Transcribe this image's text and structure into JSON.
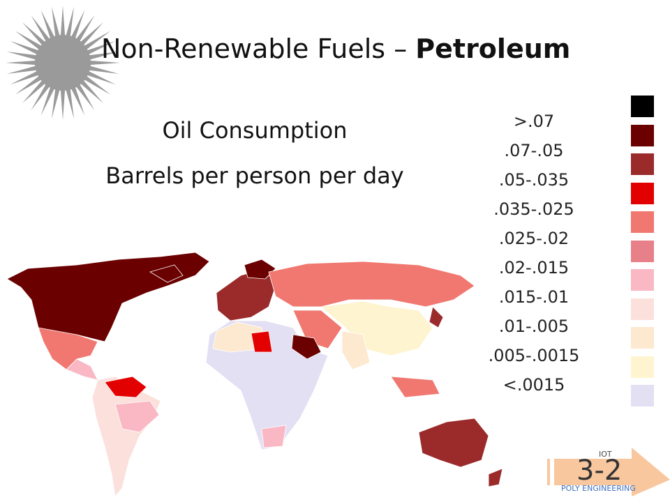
{
  "header": {
    "title": "Non-Renewable Fuels – ",
    "title_bold": "Petroleum"
  },
  "subtitle": [
    "Oil Consumption",
    "Barrels per person per day"
  ],
  "legend": {
    "swatches": [
      "#000000",
      "#6b0000",
      "#9b2a2a",
      "#e30000",
      "#f07870",
      "#e8808a",
      "#f9b8c4",
      "#fbe0dc",
      "#fde8d0",
      "#fff4d0",
      "#e4e0f4"
    ],
    "labels": [
      ">.07",
      ".07-.05",
      ".05-.035",
      ".035-.025",
      ".025-.02",
      ".02-.015",
      ".015-.01",
      ".01-.005",
      ".005-.0015",
      "<.0015"
    ]
  },
  "badge": {
    "top": "IOT",
    "number": "3-2",
    "bottom": "POLY ENGINEERING"
  }
}
